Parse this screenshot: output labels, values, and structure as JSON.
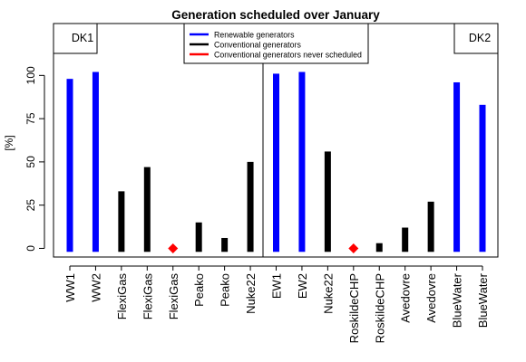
{
  "chart_data": {
    "type": "bar",
    "title": "Generation scheduled over January",
    "ylabel": "[%]",
    "xlabel": "",
    "ylim": [
      -5,
      130
    ],
    "yticks": [
      0,
      25,
      50,
      75,
      100
    ],
    "grid": false,
    "legend_position": "top-center",
    "legend": [
      {
        "label": "Renewable generators",
        "color": "#0000ff"
      },
      {
        "label": "Conventional generators",
        "color": "#000000"
      },
      {
        "label": "Conventional generators never scheduled",
        "color": "#ff0000"
      }
    ],
    "regions": [
      {
        "label": "DK1",
        "from": 0,
        "to": 8,
        "label_side": "left"
      },
      {
        "label": "DK2",
        "from": 8,
        "to": 17,
        "label_side": "right"
      }
    ],
    "categories": [
      "WW1",
      "WW2",
      "FlexiGas",
      "FlexiGas",
      "FlexiGas",
      "Peako",
      "Peako",
      "Nuke22",
      "EW1",
      "EW2",
      "Nuke22",
      "RoskildeCHP",
      "RoskildeCHP",
      "Avedovre",
      "Avedovre",
      "BlueWater",
      "BlueWater"
    ],
    "values": [
      98,
      102,
      33,
      47,
      0,
      15,
      6,
      50,
      101,
      102,
      56,
      0,
      3,
      12,
      27,
      96,
      83
    ],
    "kinds": [
      "renewable",
      "renewable",
      "conventional",
      "conventional",
      "never",
      "conventional",
      "conventional",
      "conventional",
      "renewable",
      "renewable",
      "conventional",
      "never",
      "conventional",
      "conventional",
      "conventional",
      "renewable",
      "renewable"
    ],
    "colors": {
      "renewable": "#0000ff",
      "conventional": "#000000",
      "never": "#ff0000"
    }
  }
}
